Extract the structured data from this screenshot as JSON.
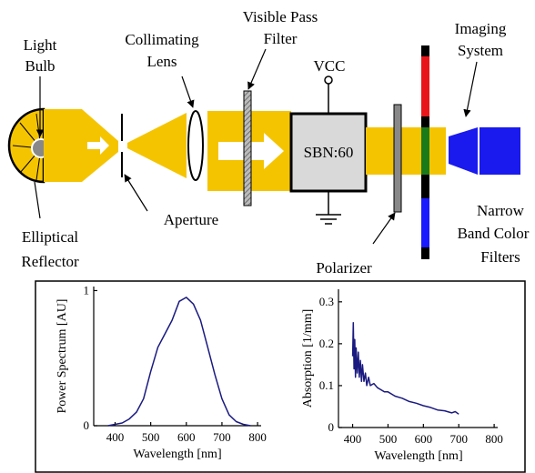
{
  "diagram": {
    "labels": [
      {
        "lines": [
          "Light",
          "Bulb"
        ]
      },
      {
        "lines": [
          "Collimating",
          "Lens"
        ]
      },
      {
        "lines": [
          "Visible Pass",
          "Filter"
        ]
      },
      {
        "lines": [
          "VCC"
        ]
      },
      {
        "lines": [
          "Imaging",
          "System"
        ]
      },
      {
        "lines": [
          "SBN:60"
        ]
      },
      {
        "lines": [
          "Aperture"
        ]
      },
      {
        "lines": [
          "Elliptical",
          "Reflector"
        ]
      },
      {
        "lines": [
          "Narrow",
          "Band Color",
          "Filters"
        ]
      },
      {
        "lines": [
          "Polarizer"
        ]
      }
    ]
  },
  "chart_data": [
    {
      "type": "line",
      "x_label": "Wavelength [nm]",
      "y_label": "Power Spectrum [AU]",
      "x": [
        380,
        400,
        420,
        440,
        460,
        480,
        500,
        520,
        540,
        560,
        580,
        600,
        620,
        640,
        660,
        680,
        700,
        720,
        740,
        760,
        780
      ],
      "values": [
        0,
        0.01,
        0.02,
        0.05,
        0.1,
        0.2,
        0.4,
        0.58,
        0.68,
        0.78,
        0.92,
        0.95,
        0.9,
        0.78,
        0.58,
        0.38,
        0.2,
        0.08,
        0.03,
        0.01,
        0
      ],
      "color": "#1a1a80",
      "xlim": [
        340,
        810
      ],
      "ylim": [
        0,
        1.03
      ],
      "xticks": [
        400,
        500,
        600,
        700,
        800
      ],
      "yticks": [
        0,
        1
      ]
    },
    {
      "type": "line",
      "x_label": "Wavelength [nm]",
      "y_label": "Absorption [1/mm]",
      "x": [
        400,
        402,
        404,
        406,
        408,
        410,
        413,
        416,
        419,
        422,
        425,
        428,
        432,
        436,
        440,
        445,
        450,
        460,
        470,
        480,
        490,
        500,
        520,
        540,
        560,
        580,
        600,
        620,
        640,
        660,
        680,
        690,
        700
      ],
      "values": [
        0.17,
        0.25,
        0.14,
        0.21,
        0.12,
        0.19,
        0.13,
        0.18,
        0.12,
        0.16,
        0.11,
        0.15,
        0.11,
        0.13,
        0.1,
        0.12,
        0.1,
        0.105,
        0.095,
        0.09,
        0.085,
        0.085,
        0.075,
        0.07,
        0.062,
        0.058,
        0.052,
        0.048,
        0.042,
        0.04,
        0.035,
        0.038,
        0.032
      ],
      "color": "#1a1a80",
      "xlim": [
        360,
        810
      ],
      "ylim": [
        0,
        0.33
      ],
      "xticks": [
        400,
        500,
        600,
        700,
        800
      ],
      "yticks": [
        0,
        0.1,
        0.2,
        0.3
      ]
    }
  ]
}
